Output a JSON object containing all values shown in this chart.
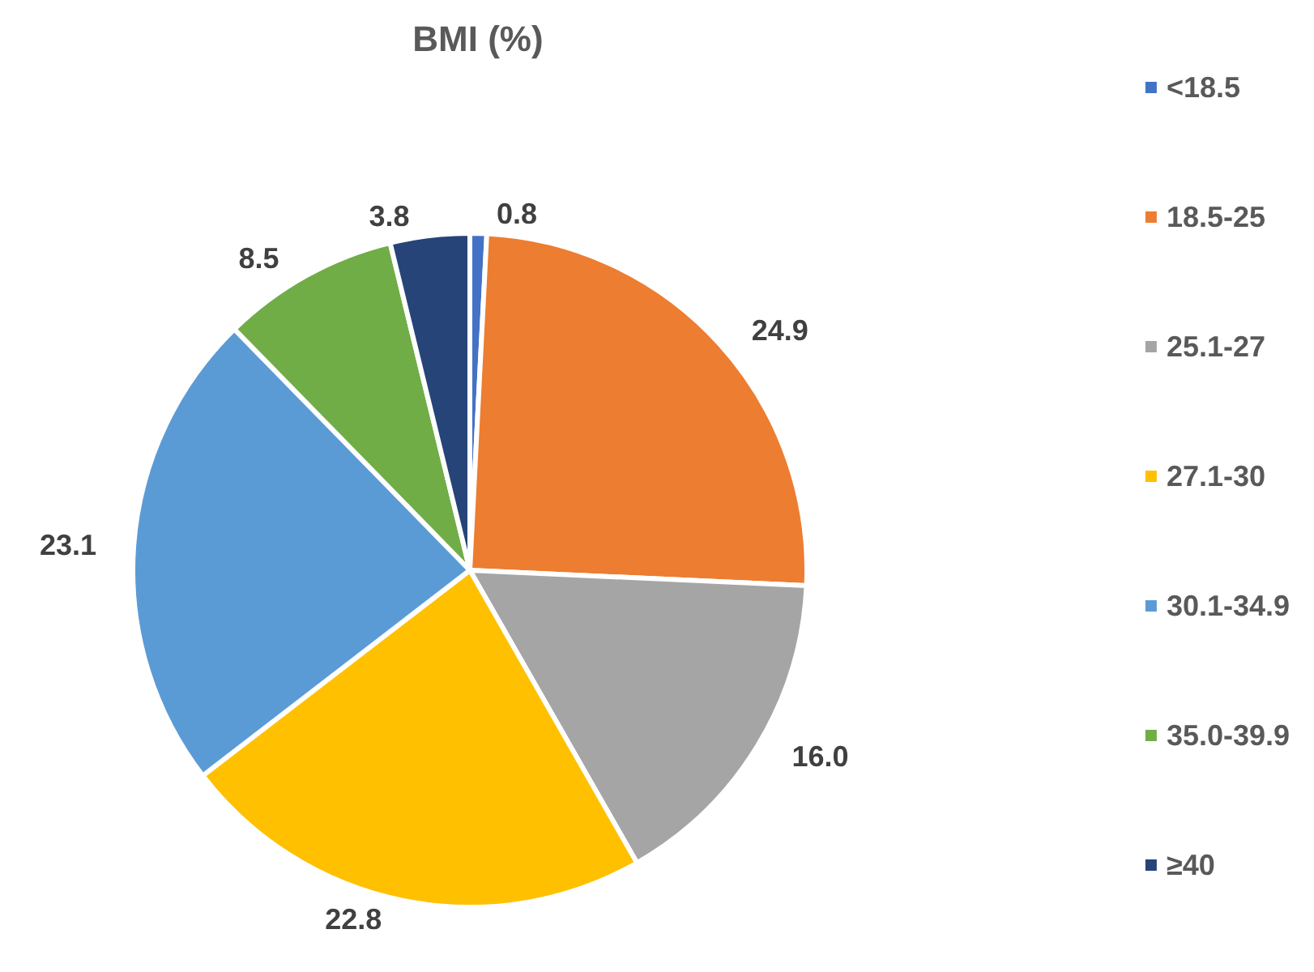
{
  "chart_data": {
    "type": "pie",
    "title": "BMI (%)",
    "categories": [
      "<18.5",
      "18.5-25",
      "25.1-27",
      "27.1-30",
      "30.1-34.9",
      "35.0-39.9",
      "≥40"
    ],
    "values": [
      0.8,
      24.9,
      16.0,
      22.8,
      23.1,
      8.5,
      3.8
    ],
    "value_labels": [
      "0.8",
      "24.9",
      "16.0",
      "22.8",
      "23.1",
      "8.5",
      "3.8"
    ],
    "colors": [
      "#4472c4",
      "#ed7d31",
      "#a5a5a5",
      "#ffc000",
      "#5b9bd5",
      "#70ad47",
      "#264478"
    ],
    "legend": "right"
  }
}
